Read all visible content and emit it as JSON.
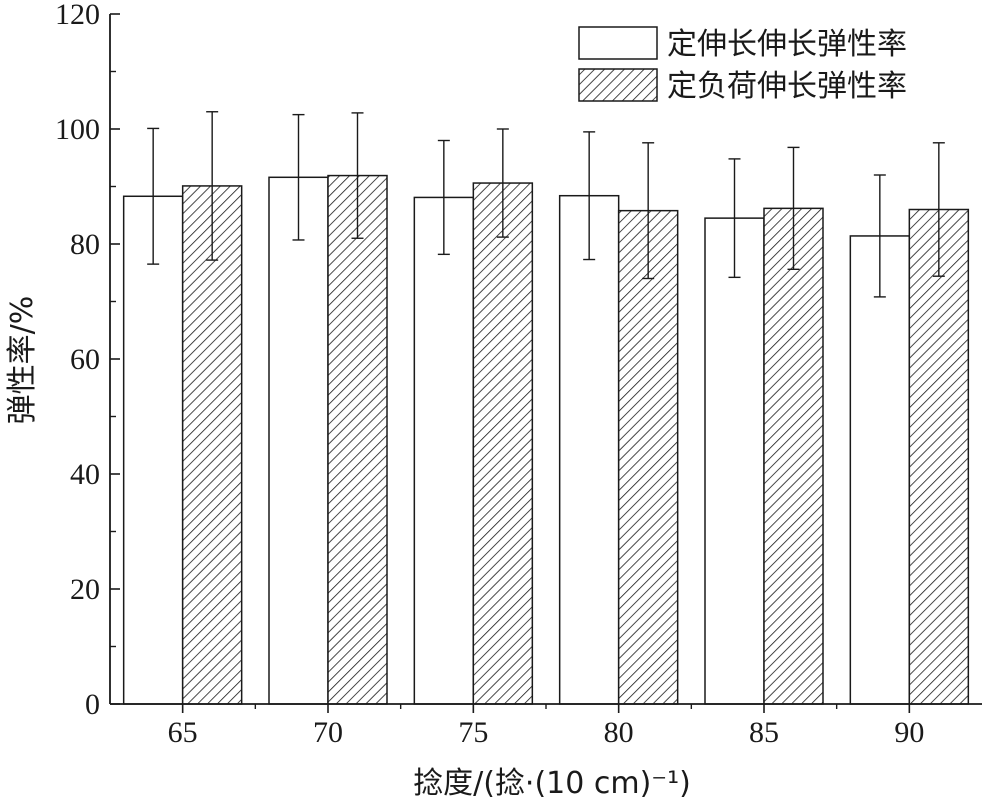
{
  "chart_data": {
    "type": "bar",
    "xlabel": "捻度/(捻·(10 cm)⁻¹)",
    "ylabel": "弹性率/%",
    "ylim": [
      0,
      120
    ],
    "yticks": [
      0,
      20,
      40,
      60,
      80,
      100,
      120
    ],
    "categories": [
      "65",
      "70",
      "75",
      "80",
      "85",
      "90"
    ],
    "legend_position": "top-right",
    "grid": false,
    "series": [
      {
        "name": "定伸长伸长弹性率",
        "fill": "plain",
        "values": [
          88.3,
          91.6,
          88.1,
          88.4,
          84.5,
          81.4
        ],
        "errors": [
          11.8,
          10.9,
          9.9,
          11.1,
          10.3,
          10.6
        ]
      },
      {
        "name": "定负荷伸长弹性率",
        "fill": "diagonal-hatch",
        "values": [
          90.1,
          91.9,
          90.6,
          85.8,
          86.2,
          86.0
        ],
        "errors": [
          12.9,
          10.9,
          9.4,
          11.8,
          10.6,
          11.6
        ]
      }
    ]
  }
}
